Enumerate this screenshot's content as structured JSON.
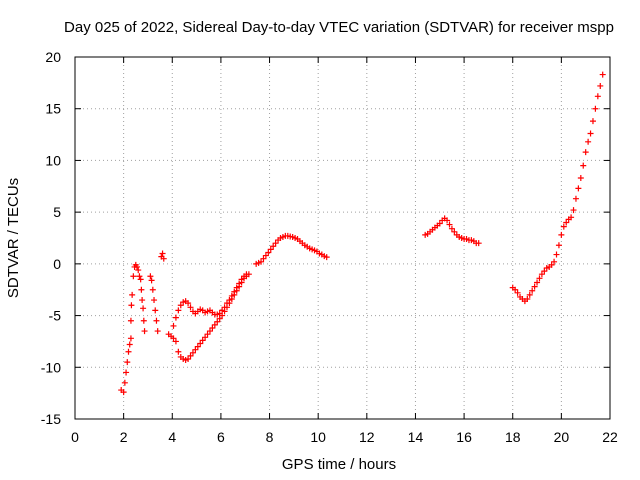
{
  "chart_data": {
    "type": "scatter",
    "title": "Day 025 of 2022, Sidereal Day-to-day VTEC variation (SDTVAR) for receiver mspp",
    "xlabel": "GPS time / hours",
    "ylabel": "SDTVAR / TECUs",
    "xlim": [
      0,
      22
    ],
    "ylim": [
      -15,
      20
    ],
    "xticks": [
      "0",
      "2",
      "4",
      "6",
      "8",
      "10",
      "12",
      "14",
      "16",
      "18",
      "20",
      "22"
    ],
    "yticks": [
      "-15",
      "-10",
      "-5",
      "0",
      "5",
      "10",
      "15",
      "20"
    ],
    "grid": true,
    "marker": "+",
    "color": "#ff0000",
    "series": [
      {
        "name": "SDTVAR",
        "segments": [
          [
            [
              1.9,
              -12.2
            ],
            [
              2.0,
              -12.4
            ],
            [
              2.05,
              -11.5
            ],
            [
              2.1,
              -10.5
            ],
            [
              2.15,
              -9.5
            ],
            [
              2.2,
              -8.5
            ],
            [
              2.25,
              -7.8
            ],
            [
              2.3,
              -7.2
            ]
          ],
          [
            [
              2.3,
              -5.5
            ],
            [
              2.32,
              -4
            ],
            [
              2.35,
              -3
            ],
            [
              2.4,
              -1.2
            ],
            [
              2.45,
              -0.3
            ],
            [
              2.5,
              -0.1
            ],
            [
              2.55,
              -0.3
            ],
            [
              2.6,
              -0.6
            ],
            [
              2.65,
              -1.2
            ],
            [
              2.7,
              -1.5
            ],
            [
              2.73,
              -2.5
            ],
            [
              2.76,
              -3.5
            ],
            [
              2.8,
              -4.3
            ],
            [
              2.83,
              -5.5
            ],
            [
              2.86,
              -6.5
            ]
          ],
          [
            [
              3.1,
              -1.2
            ],
            [
              3.15,
              -1.6
            ],
            [
              3.2,
              -2.5
            ],
            [
              3.25,
              -3.5
            ],
            [
              3.3,
              -4.5
            ],
            [
              3.35,
              -5.5
            ],
            [
              3.4,
              -6.5
            ]
          ],
          [
            [
              3.55,
              0.7
            ],
            [
              3.6,
              1.0
            ],
            [
              3.65,
              0.5
            ]
          ],
          [
            [
              3.85,
              -6.8
            ],
            [
              3.95,
              -7.0
            ],
            [
              4.05,
              -7.2
            ],
            [
              4.15,
              -7.5
            ],
            [
              4.25,
              -8.5
            ],
            [
              4.35,
              -9.0
            ],
            [
              4.45,
              -9.2
            ],
            [
              4.55,
              -9.3
            ],
            [
              4.65,
              -9.2
            ],
            [
              4.75,
              -8.9
            ],
            [
              4.85,
              -8.6
            ],
            [
              4.95,
              -8.3
            ],
            [
              5.05,
              -8.0
            ],
            [
              5.15,
              -7.7
            ],
            [
              5.25,
              -7.4
            ],
            [
              5.35,
              -7.1
            ],
            [
              5.45,
              -6.8
            ],
            [
              5.55,
              -6.5
            ],
            [
              5.65,
              -6.2
            ],
            [
              5.75,
              -5.9
            ],
            [
              5.85,
              -5.6
            ],
            [
              5.95,
              -5.3
            ],
            [
              6.05,
              -5.0
            ],
            [
              6.15,
              -4.6
            ],
            [
              6.25,
              -4.2
            ],
            [
              6.35,
              -3.8
            ],
            [
              6.45,
              -3.4
            ],
            [
              6.55,
              -3.0
            ],
            [
              6.65,
              -2.6
            ],
            [
              6.75,
              -2.2
            ],
            [
              6.85,
              -1.8
            ],
            [
              6.95,
              -1.4
            ],
            [
              7.05,
              -1.2
            ],
            [
              7.15,
              -1.0
            ]
          ],
          [
            [
              4.05,
              -6.0
            ],
            [
              4.15,
              -5.2
            ],
            [
              4.25,
              -4.5
            ],
            [
              4.35,
              -4.0
            ],
            [
              4.45,
              -3.7
            ],
            [
              4.55,
              -3.6
            ],
            [
              4.65,
              -3.8
            ],
            [
              4.75,
              -4.2
            ],
            [
              4.85,
              -4.6
            ],
            [
              4.95,
              -4.8
            ],
            [
              5.05,
              -4.6
            ],
            [
              5.15,
              -4.4
            ],
            [
              5.25,
              -4.5
            ],
            [
              5.35,
              -4.7
            ],
            [
              5.45,
              -4.6
            ],
            [
              5.55,
              -4.5
            ],
            [
              5.65,
              -4.7
            ],
            [
              5.75,
              -4.9
            ],
            [
              5.85,
              -4.9
            ],
            [
              5.95,
              -4.8
            ],
            [
              6.05,
              -4.5
            ],
            [
              6.15,
              -4.2
            ],
            [
              6.25,
              -3.8
            ],
            [
              6.35,
              -3.5
            ],
            [
              6.45,
              -3.1
            ],
            [
              6.55,
              -2.7
            ],
            [
              6.65,
              -2.3
            ],
            [
              6.75,
              -1.9
            ],
            [
              6.85,
              -1.5
            ],
            [
              6.95,
              -1.2
            ],
            [
              7.05,
              -1.0
            ]
          ],
          [
            [
              7.45,
              0.0
            ],
            [
              7.55,
              0.1
            ],
            [
              7.65,
              0.2
            ],
            [
              7.75,
              0.5
            ],
            [
              7.85,
              0.8
            ],
            [
              7.95,
              1.1
            ],
            [
              8.05,
              1.4
            ],
            [
              8.15,
              1.7
            ],
            [
              8.25,
              2.0
            ],
            [
              8.35,
              2.3
            ],
            [
              8.45,
              2.5
            ],
            [
              8.55,
              2.6
            ],
            [
              8.65,
              2.7
            ],
            [
              8.75,
              2.7
            ],
            [
              8.85,
              2.65
            ],
            [
              8.95,
              2.6
            ],
            [
              9.05,
              2.5
            ],
            [
              9.15,
              2.4
            ],
            [
              9.25,
              2.2
            ],
            [
              9.35,
              2.0
            ],
            [
              9.45,
              1.8
            ],
            [
              9.55,
              1.65
            ],
            [
              9.65,
              1.5
            ],
            [
              9.75,
              1.4
            ],
            [
              9.85,
              1.3
            ],
            [
              9.95,
              1.2
            ],
            [
              10.05,
              1.0
            ],
            [
              10.15,
              0.9
            ],
            [
              10.25,
              0.75
            ],
            [
              10.35,
              0.65
            ]
          ],
          [
            [
              14.4,
              2.8
            ],
            [
              14.5,
              2.9
            ],
            [
              14.6,
              3.1
            ],
            [
              14.7,
              3.3
            ],
            [
              14.8,
              3.5
            ],
            [
              14.9,
              3.7
            ],
            [
              15.0,
              3.9
            ],
            [
              15.1,
              4.2
            ],
            [
              15.2,
              4.4
            ],
            [
              15.3,
              4.2
            ],
            [
              15.4,
              3.8
            ],
            [
              15.5,
              3.4
            ],
            [
              15.6,
              3.1
            ],
            [
              15.7,
              2.8
            ],
            [
              15.8,
              2.6
            ],
            [
              15.9,
              2.5
            ],
            [
              16.0,
              2.4
            ],
            [
              16.1,
              2.4
            ],
            [
              16.2,
              2.3
            ],
            [
              16.3,
              2.3
            ],
            [
              16.4,
              2.2
            ],
            [
              16.5,
              2.0
            ],
            [
              16.6,
              2.0
            ]
          ],
          [
            [
              18.0,
              -2.3
            ],
            [
              18.1,
              -2.5
            ],
            [
              18.2,
              -2.8
            ],
            [
              18.3,
              -3.2
            ],
            [
              18.4,
              -3.4
            ],
            [
              18.5,
              -3.6
            ],
            [
              18.6,
              -3.4
            ],
            [
              18.7,
              -3.0
            ],
            [
              18.8,
              -2.6
            ],
            [
              18.9,
              -2.2
            ],
            [
              19.0,
              -1.8
            ],
            [
              19.1,
              -1.4
            ],
            [
              19.2,
              -1.0
            ],
            [
              19.3,
              -0.7
            ],
            [
              19.4,
              -0.4
            ],
            [
              19.5,
              -0.3
            ],
            [
              19.6,
              -0.1
            ],
            [
              19.7,
              0.2
            ],
            [
              19.8,
              0.9
            ],
            [
              19.9,
              1.8
            ],
            [
              20.0,
              2.8
            ],
            [
              20.1,
              3.6
            ],
            [
              20.2,
              4.0
            ],
            [
              20.3,
              4.3
            ],
            [
              20.4,
              4.5
            ],
            [
              20.5,
              5.2
            ],
            [
              20.6,
              6.3
            ],
            [
              20.7,
              7.3
            ],
            [
              20.8,
              8.3
            ],
            [
              20.9,
              9.5
            ],
            [
              21.0,
              10.8
            ],
            [
              21.1,
              11.8
            ],
            [
              21.2,
              12.6
            ],
            [
              21.3,
              13.8
            ],
            [
              21.4,
              15.0
            ],
            [
              21.5,
              16.2
            ],
            [
              21.6,
              17.2
            ],
            [
              21.7,
              18.3
            ]
          ]
        ]
      }
    ]
  }
}
